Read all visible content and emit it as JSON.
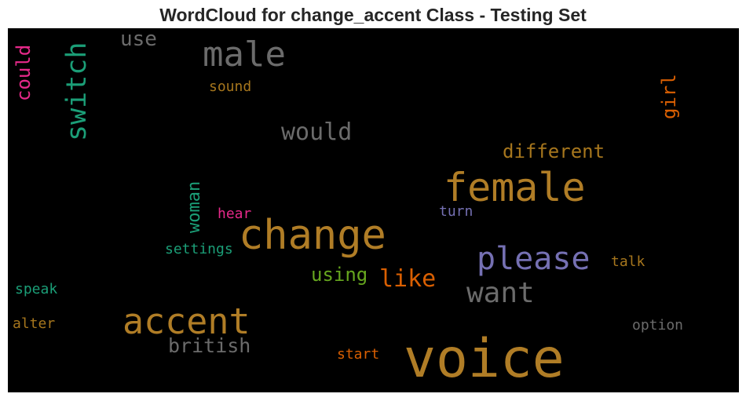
{
  "chart_data": {
    "type": "wordcloud",
    "title": "WordCloud for change_accent Class - Testing Set",
    "background": "#000000",
    "words": [
      {
        "text": "voice",
        "color": "#b07d26"
      },
      {
        "text": "change",
        "color": "#b07d26"
      },
      {
        "text": "female",
        "color": "#b07d26"
      },
      {
        "text": "accent",
        "color": "#b07d26"
      },
      {
        "text": "male",
        "color": "#6b6b6b"
      },
      {
        "text": "please",
        "color": "#7570b3"
      },
      {
        "text": "want",
        "color": "#6b6b6b"
      },
      {
        "text": "switch",
        "color": "#1b9e77"
      },
      {
        "text": "would",
        "color": "#6b6b6b"
      },
      {
        "text": "like",
        "color": "#d95f02"
      },
      {
        "text": "using",
        "color": "#66a61e"
      },
      {
        "text": "different",
        "color": "#a6761d"
      },
      {
        "text": "british",
        "color": "#6b6b6b"
      },
      {
        "text": "use",
        "color": "#6b6b6b"
      },
      {
        "text": "girl",
        "color": "#d95f02"
      },
      {
        "text": "could",
        "color": "#e7298a"
      },
      {
        "text": "woman",
        "color": "#1b9e77"
      },
      {
        "text": "settings",
        "color": "#1b9e77"
      },
      {
        "text": "sound",
        "color": "#a6761d"
      },
      {
        "text": "hear",
        "color": "#e7298a"
      },
      {
        "text": "turn",
        "color": "#7570b3"
      },
      {
        "text": "talk",
        "color": "#a6761d"
      },
      {
        "text": "speak",
        "color": "#1b9e77"
      },
      {
        "text": "alter",
        "color": "#a6761d"
      },
      {
        "text": "option",
        "color": "#6b6b6b"
      },
      {
        "text": "start",
        "color": "#d95f02"
      }
    ]
  }
}
